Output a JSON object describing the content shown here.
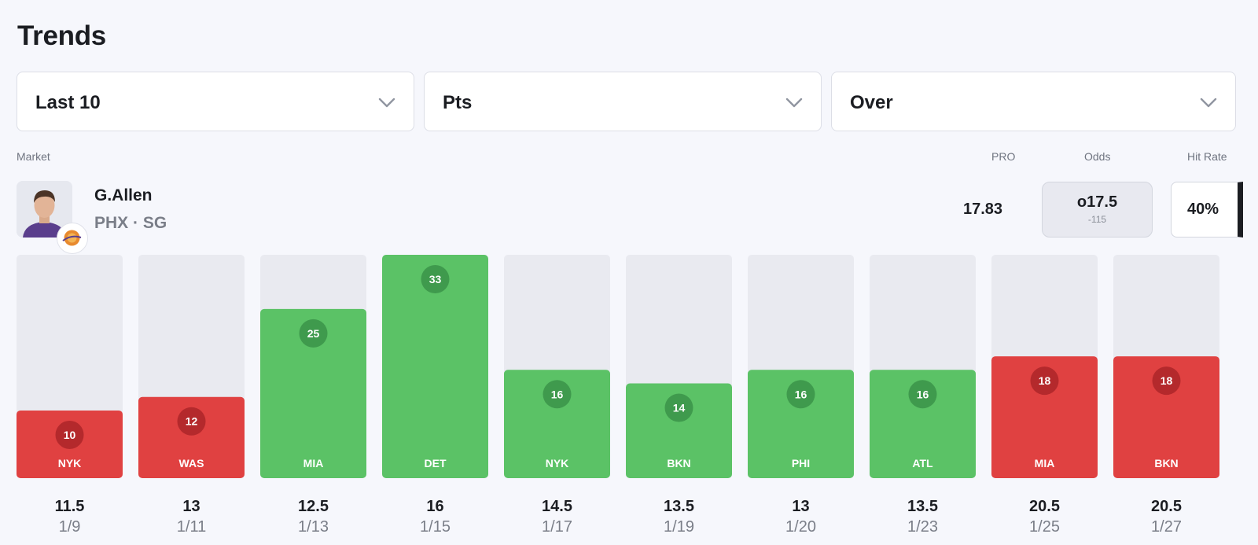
{
  "header": {
    "title": "Trends"
  },
  "filters": [
    {
      "value": "Last 10",
      "icon": "chevron-down-icon"
    },
    {
      "value": "Pts",
      "icon": "chevron-down-icon"
    },
    {
      "value": "Over",
      "icon": "chevron-down-icon"
    }
  ],
  "columns": {
    "market": "Market",
    "pro": "PRO",
    "odds": "Odds",
    "hit_rate": "Hit Rate"
  },
  "player": {
    "name": "G.Allen",
    "meta": "PHX · SG",
    "pro": "17.83",
    "odds_line": "o17.5",
    "odds_price": "-115",
    "hit_rate": "40%"
  },
  "colors": {
    "hit": "#5bc266",
    "miss": "#e04141",
    "track": "#e9eaf0",
    "bubble_hit": "#3f9a4d",
    "bubble_miss": "#b4292c"
  },
  "chart_data": {
    "type": "bar",
    "ylim": [
      0,
      33
    ],
    "categories": [
      "1/9",
      "1/11",
      "1/13",
      "1/15",
      "1/17",
      "1/19",
      "1/20",
      "1/23",
      "1/25",
      "1/27"
    ],
    "opponents": [
      "NYK",
      "WAS",
      "MIA",
      "DET",
      "NYK",
      "BKN",
      "PHI",
      "ATL",
      "MIA",
      "BKN"
    ],
    "values": [
      10,
      12,
      25,
      33,
      16,
      14,
      16,
      16,
      18,
      18
    ],
    "lines": [
      "11.5",
      "13",
      "12.5",
      "16",
      "14.5",
      "13.5",
      "13",
      "13.5",
      "20.5",
      "20.5"
    ],
    "value_labels": [
      "10",
      "12",
      "25",
      "33",
      "16",
      "14",
      "16",
      "16",
      "18",
      "18"
    ],
    "results": [
      "miss",
      "miss",
      "hit",
      "hit",
      "hit",
      "hit",
      "hit",
      "hit",
      "miss",
      "miss"
    ]
  }
}
